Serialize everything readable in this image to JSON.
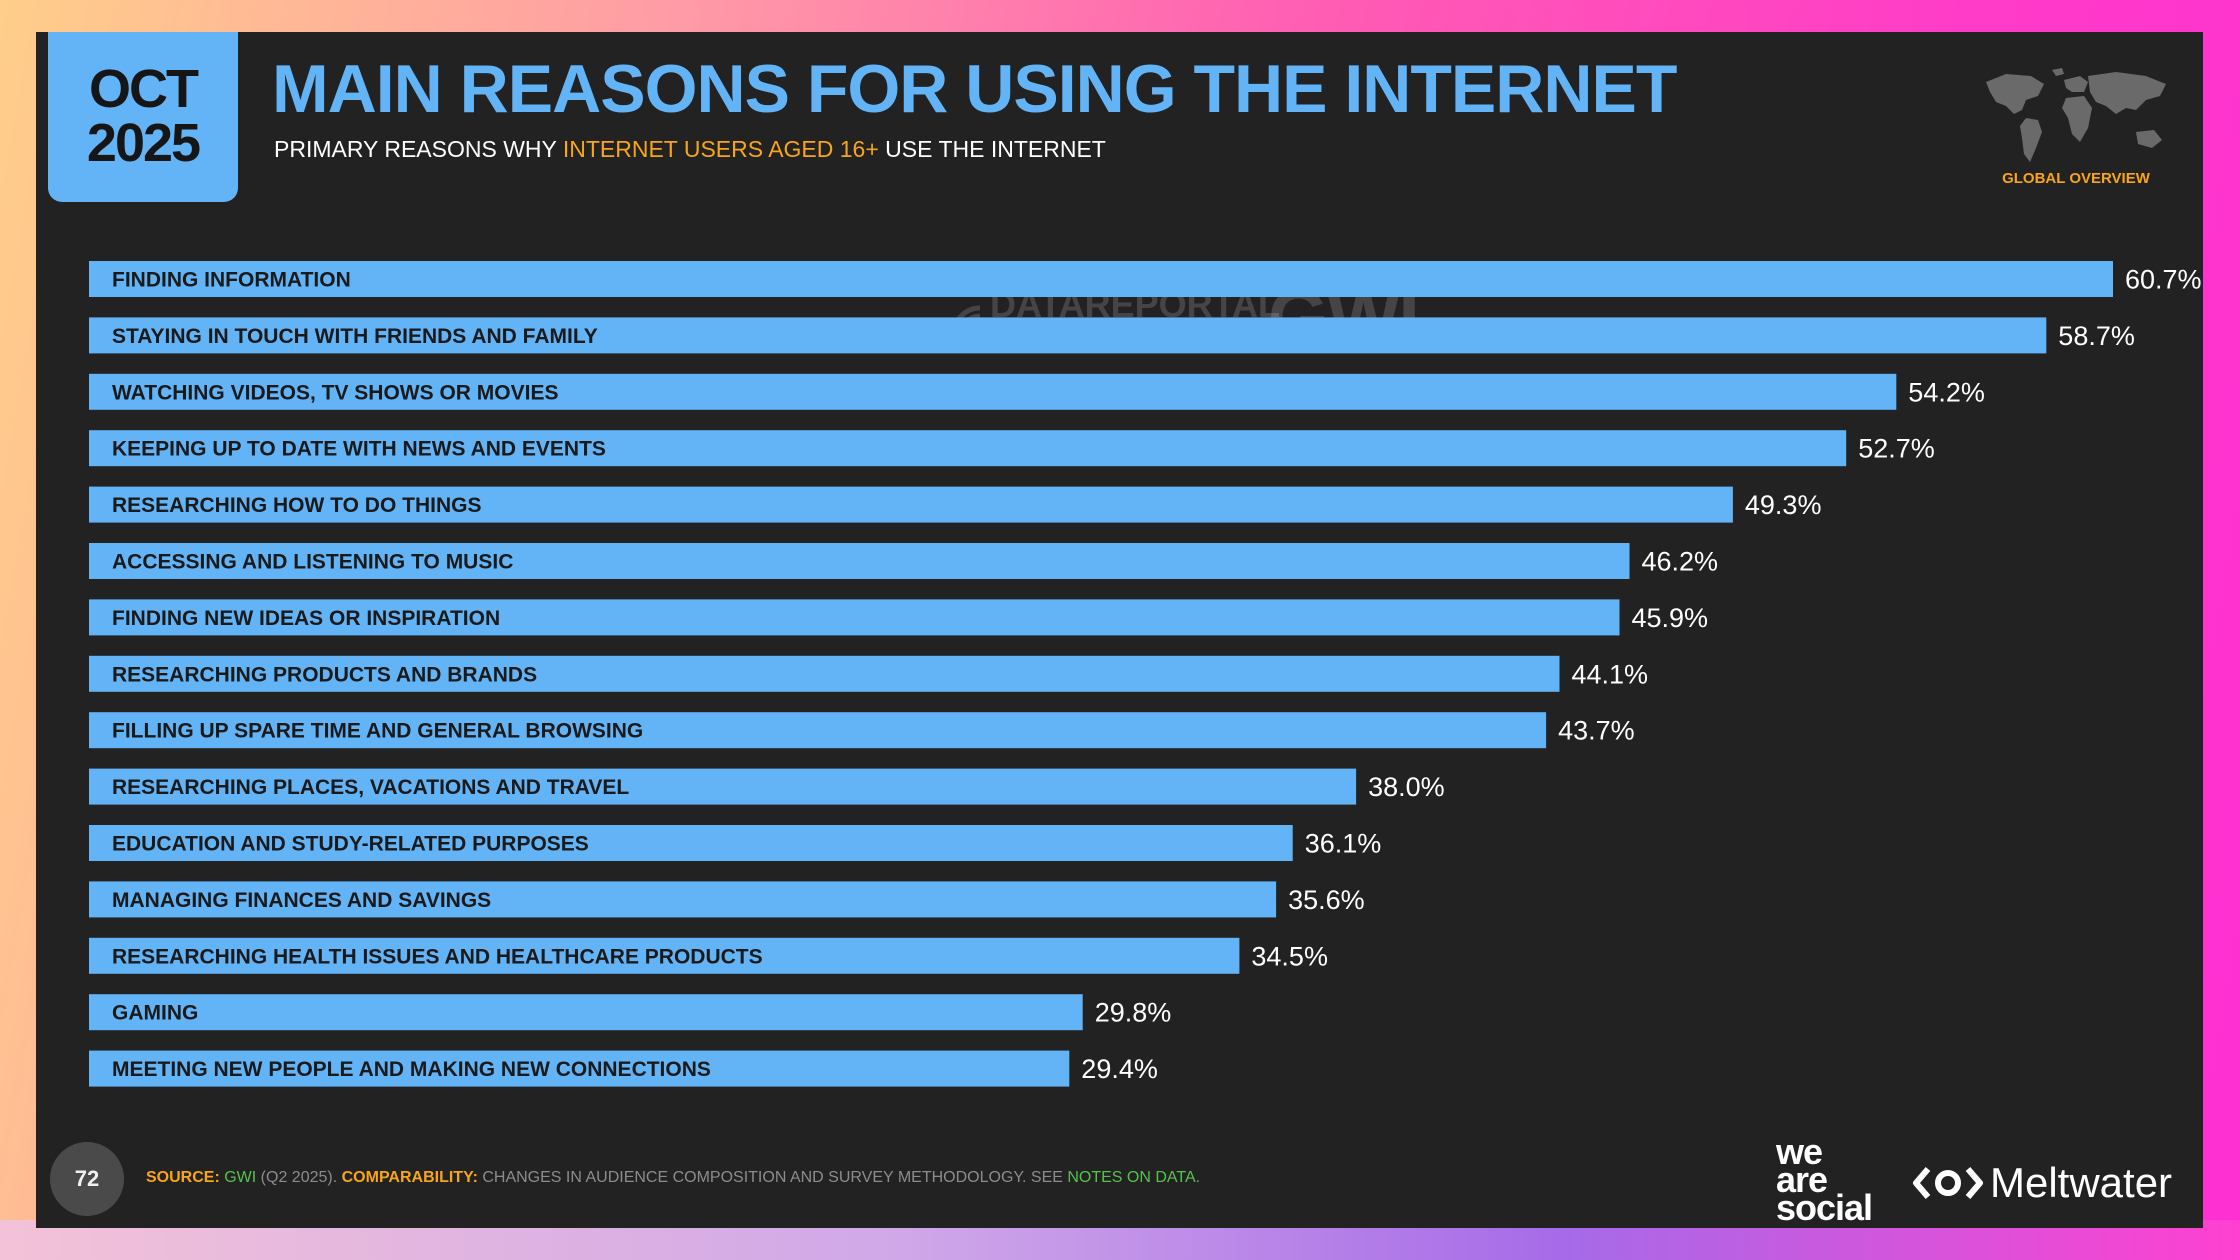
{
  "header": {
    "date_month": "OCT",
    "date_year": "2025",
    "title": "MAIN REASONS FOR USING THE INTERNET",
    "subtitle_pre": "PRIMARY REASONS WHY ",
    "subtitle_highlight": "INTERNET USERS AGED 16+",
    "subtitle_post": " USE THE INTERNET",
    "map_label": "GLOBAL OVERVIEW"
  },
  "watermark": {
    "datareportal": "DATAREPORTAL",
    "gwi": "GWI."
  },
  "colors": {
    "accent_blue": "#63b3f7",
    "accent_orange": "#f7a51b",
    "background": "#222222",
    "link_green": "#57c24f"
  },
  "chart_data": {
    "type": "bar",
    "orientation": "horizontal",
    "value_suffix": "%",
    "categories": [
      "FINDING INFORMATION",
      "STAYING IN TOUCH WITH FRIENDS AND FAMILY",
      "WATCHING VIDEOS, TV SHOWS OR MOVIES",
      "KEEPING UP TO DATE WITH NEWS AND EVENTS",
      "RESEARCHING HOW TO DO THINGS",
      "ACCESSING AND LISTENING TO MUSIC",
      "FINDING NEW IDEAS OR INSPIRATION",
      "RESEARCHING PRODUCTS AND BRANDS",
      "FILLING UP SPARE TIME AND GENERAL BROWSING",
      "RESEARCHING PLACES, VACATIONS AND TRAVEL",
      "EDUCATION AND STUDY-RELATED PURPOSES",
      "MANAGING FINANCES AND SAVINGS",
      "RESEARCHING HEALTH ISSUES AND HEALTHCARE PRODUCTS",
      "GAMING",
      "MEETING NEW PEOPLE AND MAKING NEW CONNECTIONS"
    ],
    "values": [
      60.7,
      58.7,
      54.2,
      52.7,
      49.3,
      46.2,
      45.9,
      44.1,
      43.7,
      38.0,
      36.1,
      35.6,
      34.5,
      29.8,
      29.4
    ],
    "value_labels": [
      "60.7%",
      "58.7%",
      "54.2%",
      "52.7%",
      "49.3%",
      "46.2%",
      "45.9%",
      "44.1%",
      "43.7%",
      "38.0%",
      "36.1%",
      "35.6%",
      "34.5%",
      "29.8%",
      "29.4%"
    ],
    "title": "MAIN REASONS FOR USING THE INTERNET",
    "xlabel": "",
    "ylabel": "",
    "grid": false,
    "bar_color": "#63b3f7"
  },
  "footer": {
    "page_number": "72",
    "source_label": "SOURCE:",
    "source_name": "GWI",
    "source_detail": " (Q2 2025). ",
    "comparability_label": "COMPARABILITY:",
    "comparability_text": " CHANGES IN AUDIENCE COMPOSITION AND SURVEY METHODOLOGY. SEE ",
    "notes_link": "NOTES ON DATA",
    "notes_end": ".",
    "logo_we": "we",
    "logo_are": "are",
    "logo_social": "social",
    "logo_meltwater": "Meltwater"
  }
}
